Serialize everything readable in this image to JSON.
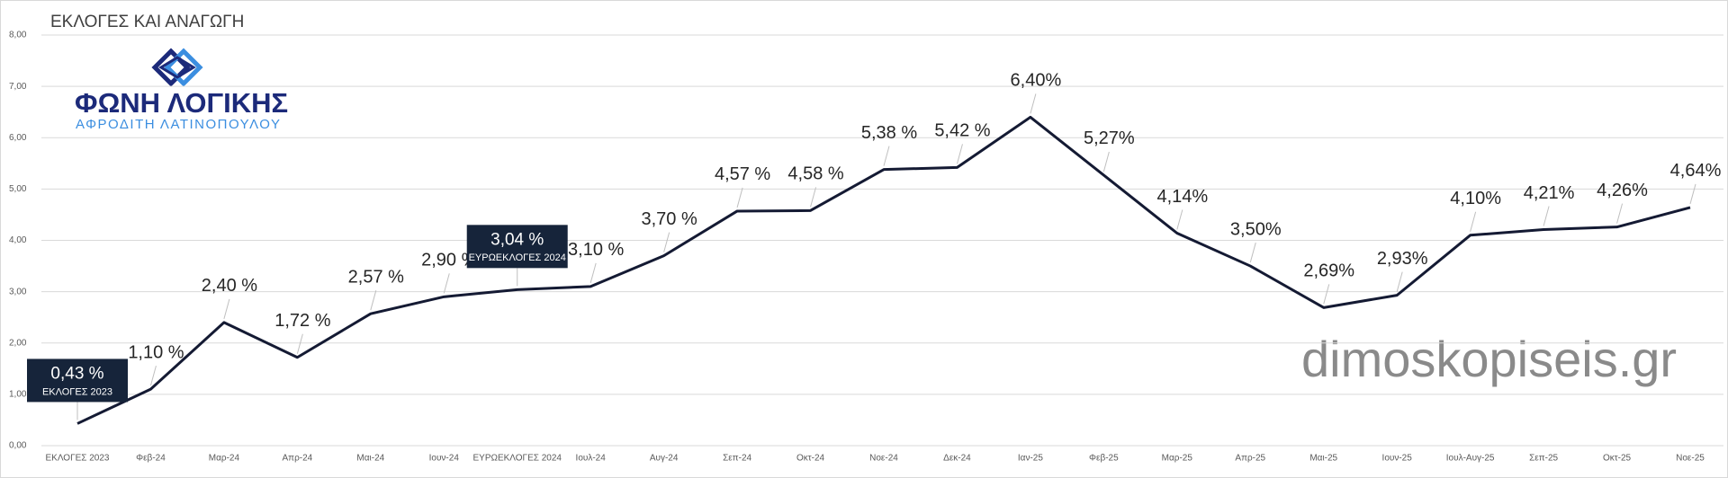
{
  "chart_data": {
    "type": "line",
    "title": "ΕΚΛΟΓΕΣ ΚΑΙ ΑΝΑΓΩΓΗ",
    "logo_title": "ΦΩΝΗ ΛΟΓΙΚΗΣ",
    "logo_subtitle": "ΑΦΡΟΔΙΤΗ ΛΑΤΙΝΟΠΟΥΛΟΥ",
    "watermark": "dimoskopiseis.gr",
    "categories": [
      "ΕΚΛΟΓΕΣ 2023",
      "Φεβ-24",
      "Μαρ-24",
      "Απρ-24",
      "Μαι-24",
      "Ιουν-24",
      "ΕΥΡΩΕΚΛΟΓΕΣ 2024",
      "Ιουλ-24",
      "Αυγ-24",
      "Σεπ-24",
      "Οκτ-24",
      "Νοε-24",
      "Δεκ-24",
      "Ιαν-25",
      "Φεβ-25",
      "Μαρ-25",
      "Απρ-25",
      "Μαι-25",
      "Ιουν-25",
      "Ιουλ-Αυγ-25",
      "Σεπ-25",
      "Οκτ-25",
      "Νοε-25"
    ],
    "values": [
      0.43,
      1.1,
      2.4,
      1.72,
      2.57,
      2.9,
      3.04,
      3.1,
      3.7,
      4.57,
      4.58,
      5.38,
      5.42,
      6.4,
      5.27,
      4.14,
      3.5,
      2.69,
      2.93,
      4.1,
      4.21,
      4.26,
      4.64
    ],
    "value_labels": [
      "0,43 %",
      "1,10 %",
      "2,40 %",
      "1,72 %",
      "2,57 %",
      "2,90 %",
      "3,04 %",
      "3,10 %",
      "3,70 %",
      "4,57 %",
      "4,58 %",
      "5,38 %",
      "5,42 %",
      "6,40%",
      "5,27%",
      "4,14%",
      "3,50%",
      "2,69%",
      "2,93%",
      "4,10%",
      "4,21%",
      "4,26%",
      "4,64%"
    ],
    "value_notes": [
      "ΕΚΛΟΓΕΣ 2023",
      null,
      null,
      null,
      null,
      null,
      "ΕΥΡΩΕΚΛΟΓΕΣ 2024",
      null,
      null,
      null,
      null,
      null,
      null,
      null,
      null,
      null,
      null,
      null,
      null,
      null,
      null,
      null,
      null
    ],
    "color": "#141a33",
    "ylim": [
      0,
      8
    ],
    "yticks": [
      {
        "value": 0,
        "label": "0,00"
      },
      {
        "value": 1,
        "label": "1,00"
      },
      {
        "value": 2,
        "label": "2,00"
      },
      {
        "value": 3,
        "label": "3,00"
      },
      {
        "value": 4,
        "label": "4,00"
      },
      {
        "value": 5,
        "label": "5,00"
      },
      {
        "value": 6,
        "label": "6,00"
      },
      {
        "value": 7,
        "label": "7,00"
      },
      {
        "value": 8,
        "label": "8,00"
      }
    ],
    "grid": true
  }
}
